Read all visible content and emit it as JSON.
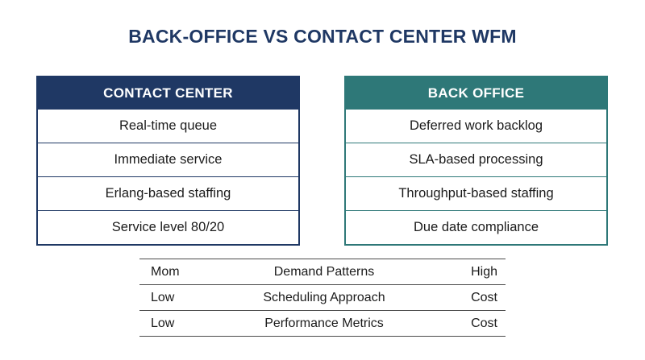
{
  "title": "BACK-OFFICE VS CONTACT CENTER WFM",
  "contact_center": {
    "header": "CONTACT CENTER",
    "items": [
      "Real-time queue",
      "Immediate service",
      "Erlang-based staffing",
      "Service level 80/20"
    ]
  },
  "back_office": {
    "header": "BACK OFFICE",
    "items": [
      "Deferred work backlog",
      "SLA-based processing",
      "Throughput-based staffing",
      "Due date compliance"
    ]
  },
  "comparison": {
    "rows": [
      {
        "left": "Mom",
        "label": "Demand Patterns",
        "right": "High"
      },
      {
        "left": "Low",
        "label": "Scheduling Approach",
        "right": "Cost"
      },
      {
        "left": "Low",
        "label": "Performance Metrics",
        "right": "Cost"
      }
    ]
  },
  "colors": {
    "contact_center": "#1f3864",
    "back_office": "#2e7878"
  }
}
